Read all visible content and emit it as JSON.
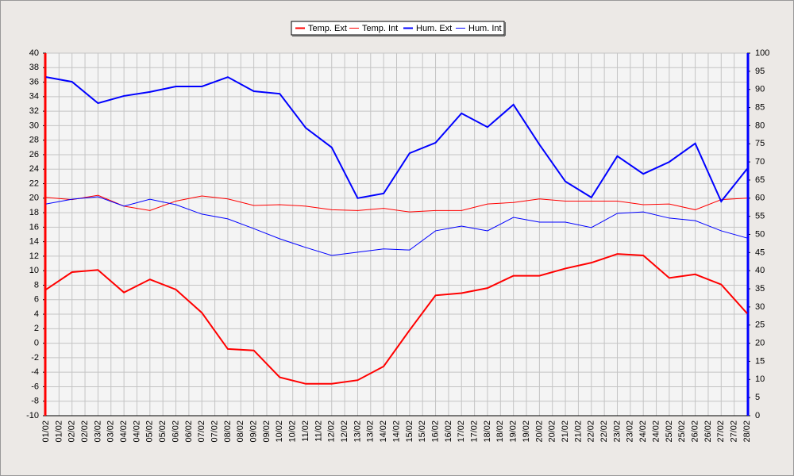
{
  "chart_data": {
    "type": "line",
    "x_labels": [
      "01/02",
      "01/02",
      "02/02",
      "02/02",
      "03/02",
      "03/02",
      "04/02",
      "04/02",
      "05/02",
      "05/02",
      "06/02",
      "06/02",
      "07/02",
      "07/02",
      "08/02",
      "08/02",
      "09/02",
      "09/02",
      "10/02",
      "10/02",
      "11/02",
      "11/02",
      "12/02",
      "12/02",
      "13/02",
      "13/02",
      "14/02",
      "14/02",
      "15/02",
      "15/02",
      "16/02",
      "16/02",
      "17/02",
      "17/02",
      "18/02",
      "18/02",
      "19/02",
      "19/02",
      "20/02",
      "20/02",
      "21/02",
      "21/02",
      "22/02",
      "22/02",
      "23/02",
      "23/02",
      "24/02",
      "24/02",
      "25/02",
      "25/02",
      "26/02",
      "26/02",
      "27/02",
      "27/02",
      "28/02"
    ],
    "series": [
      {
        "name": "Temp. Ext",
        "color": "#ff0000",
        "width": 2,
        "axis": "y",
        "values": [
          7.4,
          9.8,
          10.1,
          7.0,
          8.8,
          7.4,
          4.2,
          -0.8,
          -1.0,
          -4.7,
          -5.6,
          -5.6,
          -5.1,
          -3.2,
          1.8,
          6.6,
          6.9,
          7.6,
          9.3,
          9.3,
          10.3,
          11.1,
          12.3,
          12.1,
          9.0,
          9.5,
          8.1,
          4.1
        ]
      },
      {
        "name": "Temp. Int",
        "color": "#ff0000",
        "width": 1,
        "axis": "y",
        "values": [
          20.1,
          19.8,
          20.4,
          18.9,
          18.3,
          19.6,
          20.3,
          19.9,
          19.0,
          19.1,
          18.9,
          18.4,
          18.3,
          18.6,
          18.1,
          18.3,
          18.3,
          19.2,
          19.4,
          19.9,
          19.6,
          19.6,
          19.6,
          19.1,
          19.2,
          18.4,
          19.8,
          20.0
        ]
      },
      {
        "name": "Hum. Ext",
        "color": "#0000ff",
        "width": 2,
        "axis": "y2",
        "values": [
          93.4,
          92.1,
          86.2,
          88.2,
          89.3,
          90.8,
          90.8,
          93.4,
          89.5,
          88.8,
          79.4,
          74.0,
          60.0,
          61.3,
          72.4,
          75.3,
          83.4,
          79.6,
          85.8,
          74.8,
          64.6,
          60.2,
          71.6,
          66.7,
          70.0,
          75.1,
          59.1,
          68.1
        ]
      },
      {
        "name": "Hum. Int",
        "color": "#0000ff",
        "width": 1,
        "axis": "y2",
        "values": [
          58.4,
          59.7,
          60.4,
          57.8,
          59.7,
          58.2,
          55.6,
          54.3,
          51.6,
          48.8,
          46.4,
          44.2,
          45.1,
          46.0,
          45.7,
          51.0,
          52.3,
          51.0,
          54.7,
          53.4,
          53.4,
          51.9,
          55.8,
          56.2,
          54.5,
          53.8,
          51.0,
          49.0
        ]
      }
    ],
    "ylim": [
      -10,
      40
    ],
    "yticks": [
      -10,
      -8,
      -6,
      -4,
      -2,
      0,
      2,
      4,
      6,
      8,
      10,
      12,
      14,
      16,
      18,
      20,
      22,
      24,
      26,
      28,
      30,
      32,
      34,
      36,
      38,
      40
    ],
    "y2lim": [
      0,
      100
    ],
    "y2ticks": [
      0,
      5,
      10,
      15,
      20,
      25,
      30,
      35,
      40,
      45,
      50,
      55,
      60,
      65,
      70,
      75,
      80,
      85,
      90,
      95,
      100
    ],
    "yaxis_color": "#ff0000",
    "y2axis_color": "#0000ff",
    "grid": true,
    "legend": "top"
  }
}
